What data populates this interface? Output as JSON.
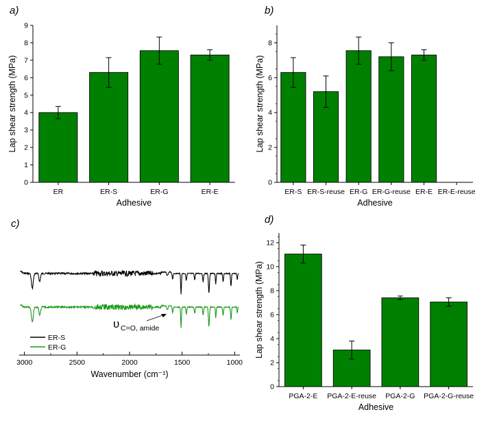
{
  "colors": {
    "bar": "#008000",
    "bar_stroke": "#000000",
    "spectrum_er_s": "#000000",
    "spectrum_er_g": "#1a9a1a"
  },
  "chart_data": [
    {
      "panel": "a)",
      "type": "bar",
      "categories": [
        "ER",
        "ER-S",
        "ER-G",
        "ER-E"
      ],
      "values": [
        4.0,
        6.3,
        7.55,
        7.3
      ],
      "errors": [
        0.35,
        0.85,
        0.78,
        0.3
      ],
      "xlabel": "Adhesive",
      "ylabel": "Lap shear strength (MPa)",
      "ylim": [
        0,
        9
      ],
      "yticks": [
        "0",
        "1",
        "2",
        "3",
        "4",
        "5",
        "6",
        "7",
        "8",
        "9"
      ]
    },
    {
      "panel": "b)",
      "type": "bar",
      "categories": [
        "ER-S",
        "ER-S-reuse",
        "ER-G",
        "ER-G-reuse",
        "ER-E",
        "ER-E-reuse"
      ],
      "values": [
        6.3,
        5.2,
        7.55,
        7.2,
        7.3,
        0
      ],
      "errors": [
        0.85,
        0.9,
        0.78,
        0.8,
        0.3,
        0
      ],
      "xlabel": "Adhesive",
      "ylabel": "Lap shear strength (MPa)",
      "ylim": [
        0,
        9
      ],
      "yticks": [
        "0",
        "2",
        "4",
        "6",
        "8"
      ]
    },
    {
      "panel": "c)",
      "type": "line",
      "xlabel": "Wavenumber (cm⁻¹)",
      "xlim": [
        3050,
        950
      ],
      "xticks": [
        "3000",
        "2500",
        "2000",
        "1500",
        "1000"
      ],
      "series": [
        {
          "name": "ER-S",
          "color": "#000000"
        },
        {
          "name": "ER-G",
          "color": "#1a9a1a"
        }
      ],
      "annotation": {
        "symbol": "υ",
        "subscript": "C=O, amide",
        "x": 1620
      }
    },
    {
      "panel": "d)",
      "type": "bar",
      "categories": [
        "PGA-2-E",
        "PGA-2-E-reuse",
        "PGA-2-G",
        "PGA-2-G-reuse"
      ],
      "values": [
        11.05,
        3.05,
        7.4,
        7.05
      ],
      "errors": [
        0.75,
        0.75,
        0.15,
        0.35
      ],
      "xlabel": "Adhesive",
      "ylabel": "Lap shear strength (MPa)",
      "ylim": [
        0,
        12.8
      ],
      "yticks": [
        "0",
        "2",
        "4",
        "6",
        "8",
        "10",
        "12"
      ]
    }
  ]
}
